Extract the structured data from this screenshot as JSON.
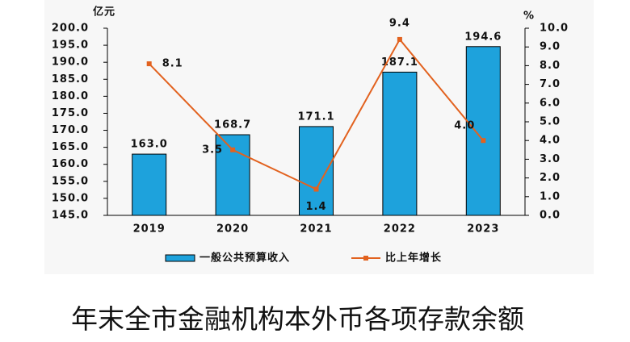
{
  "chart_data": {
    "type": "bar",
    "y_unit": "亿元",
    "y2_unit": "%",
    "categories": [
      "2019",
      "2020",
      "2021",
      "2022",
      "2023"
    ],
    "series": [
      {
        "name": "一般公共预算收入",
        "type": "bar",
        "color": "#1ea2dc",
        "values": [
          163.0,
          168.7,
          171.1,
          187.1,
          194.6
        ],
        "value_labels": [
          "163.0",
          "168.7",
          "171.1",
          "187.1",
          "194.6"
        ]
      },
      {
        "name": "比上年增长",
        "type": "line",
        "axis": "y2",
        "color": "#e2621f",
        "values": [
          8.1,
          3.5,
          1.4,
          9.4,
          4.0
        ],
        "value_labels": [
          "8.1",
          "3.5",
          "1.4",
          "9.4",
          "4.0"
        ]
      }
    ],
    "ylim": [
      145,
      200
    ],
    "yticks": [
      {
        "value": 145,
        "label": "145.0"
      },
      {
        "value": 150,
        "label": "150.0"
      },
      {
        "value": 155,
        "label": "155.0"
      },
      {
        "value": 160,
        "label": "160.0"
      },
      {
        "value": 165,
        "label": "165.0"
      },
      {
        "value": 170,
        "label": "170.0"
      },
      {
        "value": 175,
        "label": "175.0"
      },
      {
        "value": 180,
        "label": "180.0"
      },
      {
        "value": 185,
        "label": "185.0"
      },
      {
        "value": 190,
        "label": "190.0"
      },
      {
        "value": 195,
        "label": "195.0"
      },
      {
        "value": 200,
        "label": "200.0"
      }
    ],
    "y2lim": [
      0,
      10
    ],
    "y2ticks": [
      {
        "value": 0,
        "label": "0.0"
      },
      {
        "value": 1,
        "label": "1.0"
      },
      {
        "value": 2,
        "label": "2.0"
      },
      {
        "value": 3,
        "label": "3.0"
      },
      {
        "value": 4,
        "label": "4.0"
      },
      {
        "value": 5,
        "label": "5.0"
      },
      {
        "value": 6,
        "label": "6.0"
      },
      {
        "value": 7,
        "label": "7.0"
      },
      {
        "value": 8,
        "label": "8.0"
      },
      {
        "value": 9,
        "label": "9.0"
      },
      {
        "value": 10,
        "label": "10.0"
      }
    ],
    "grid": false,
    "legend": "bottom"
  },
  "caption": "年末全市金融机构本外币各项存款余额"
}
